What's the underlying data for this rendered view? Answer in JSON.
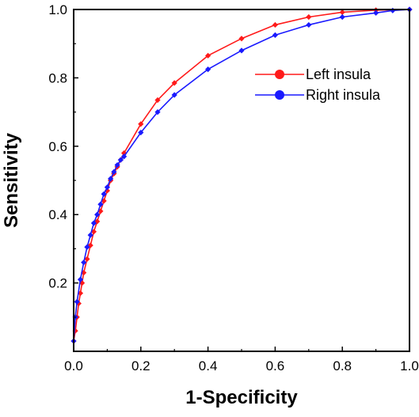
{
  "chart_data": {
    "type": "line",
    "title": "",
    "xlabel": "1-Specificity",
    "ylabel": "Sensitivity",
    "xlim": [
      0,
      1.0
    ],
    "ylim": [
      0,
      1.0
    ],
    "xticks": [
      "0.0",
      "0.2",
      "0.4",
      "0.6",
      "0.8",
      "1.0"
    ],
    "yticks": [
      "0.2",
      "0.4",
      "0.6",
      "0.8",
      "1.0"
    ],
    "grid": false,
    "legend_position": "top-right",
    "series": [
      {
        "name": "Left insula",
        "color": "#ff1a1a",
        "x": [
          0.0,
          0.005,
          0.01,
          0.015,
          0.02,
          0.025,
          0.03,
          0.04,
          0.05,
          0.06,
          0.07,
          0.08,
          0.09,
          0.1,
          0.11,
          0.12,
          0.13,
          0.14,
          0.15,
          0.2,
          0.25,
          0.3,
          0.4,
          0.5,
          0.6,
          0.7,
          0.8,
          0.9,
          1.0
        ],
        "y": [
          0.03,
          0.06,
          0.1,
          0.14,
          0.17,
          0.2,
          0.23,
          0.27,
          0.31,
          0.35,
          0.38,
          0.41,
          0.44,
          0.47,
          0.5,
          0.52,
          0.54,
          0.56,
          0.58,
          0.665,
          0.735,
          0.785,
          0.865,
          0.915,
          0.955,
          0.978,
          0.992,
          0.998,
          1.0
        ]
      },
      {
        "name": "Right insula",
        "color": "#1a1aff",
        "x": [
          0.0,
          0.005,
          0.01,
          0.02,
          0.03,
          0.04,
          0.05,
          0.06,
          0.07,
          0.08,
          0.09,
          0.1,
          0.11,
          0.12,
          0.13,
          0.14,
          0.15,
          0.2,
          0.25,
          0.3,
          0.4,
          0.5,
          0.6,
          0.7,
          0.8,
          0.9,
          0.95,
          1.0
        ],
        "y": [
          0.03,
          0.1,
          0.145,
          0.21,
          0.26,
          0.305,
          0.34,
          0.375,
          0.4,
          0.43,
          0.46,
          0.48,
          0.505,
          0.525,
          0.545,
          0.56,
          0.57,
          0.64,
          0.7,
          0.75,
          0.825,
          0.88,
          0.925,
          0.955,
          0.978,
          0.99,
          0.997,
          1.0
        ]
      }
    ]
  }
}
